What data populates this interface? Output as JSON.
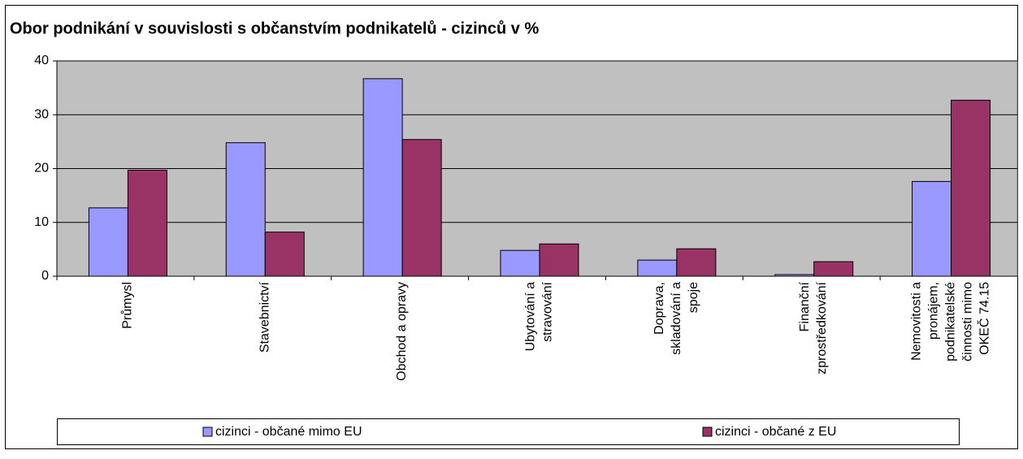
{
  "chart_data": {
    "type": "bar",
    "title": "Obor podnikání v souvislosti s občanstvím podnikatelů - cizinců v %",
    "categories": [
      "Průmysl",
      "Stavebnictví",
      "Obchod a opravy",
      "Ubytování a stravování",
      "Doprava, skladování a spoje",
      "Finanční zprostředkování",
      "Nemovitosti a pronájem, podnikatelské činnosti mimo OKEČ 74.15"
    ],
    "series": [
      {
        "name": "cizinci - občané mimo EU",
        "color": "#9999ff",
        "values": [
          12.7,
          24.8,
          36.7,
          4.8,
          3.0,
          0.3,
          17.6
        ]
      },
      {
        "name": "cizinci - občané z EU",
        "color": "#993366",
        "values": [
          19.7,
          8.2,
          25.4,
          6.0,
          5.1,
          2.7,
          32.7
        ]
      }
    ],
    "ylim": [
      0,
      40
    ],
    "yticks": [
      0,
      10,
      20,
      30,
      40
    ],
    "grid": true,
    "legend": "bottom"
  }
}
